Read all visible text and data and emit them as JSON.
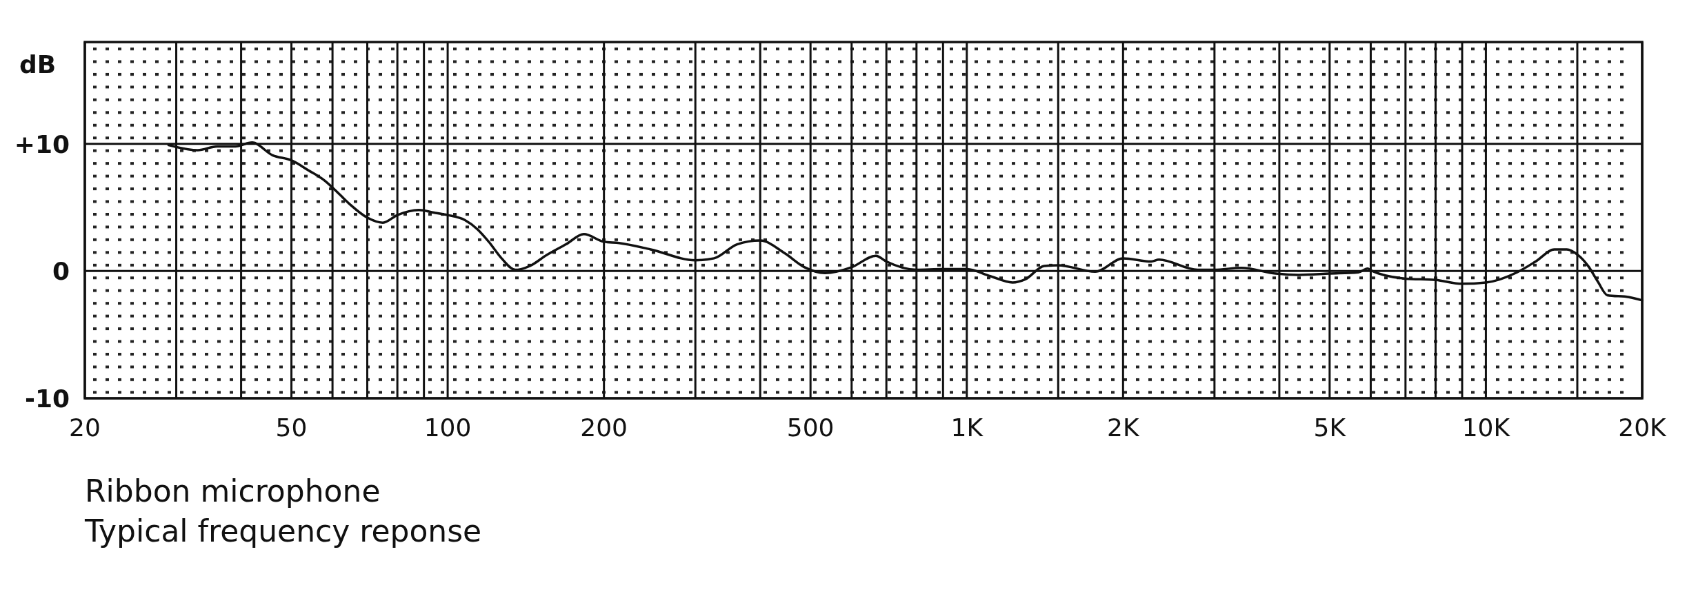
{
  "chart_data": {
    "type": "line",
    "title": "Ribbon microphone",
    "subtitle": "Typical frequency reponse",
    "ylabel": "dB",
    "log": "x",
    "grid": true,
    "marker": "none",
    "line_style": "solid",
    "xlim": [
      20,
      20000
    ],
    "ylim": [
      -10,
      18
    ],
    "xticks": [
      20,
      {
        "value": 30,
        "label": null
      },
      {
        "value": 40,
        "label": null
      },
      50,
      {
        "value": 60,
        "label": null
      },
      {
        "value": 70,
        "label": null
      },
      {
        "value": 80,
        "label": null
      },
      {
        "value": 90,
        "label": null
      },
      100,
      200,
      {
        "value": 300,
        "label": null
      },
      {
        "value": 400,
        "label": null
      },
      500,
      {
        "value": 600,
        "label": null
      },
      {
        "value": 700,
        "label": null
      },
      {
        "value": 800,
        "label": null
      },
      {
        "value": 900,
        "label": null
      },
      {
        "value": 1000,
        "label": "1K"
      },
      {
        "value": 1500,
        "label": null
      },
      {
        "value": 2000,
        "label": "2K"
      },
      {
        "value": 3000,
        "label": null
      },
      {
        "value": 4000,
        "label": null
      },
      {
        "value": 5000,
        "label": "5K"
      },
      {
        "value": 6000,
        "label": null
      },
      {
        "value": 7000,
        "label": null
      },
      {
        "value": 8000,
        "label": null
      },
      {
        "value": 9000,
        "label": null
      },
      {
        "value": 10000,
        "label": "10K"
      },
      {
        "value": 15000,
        "label": null
      },
      {
        "value": 20000,
        "label": "20K"
      }
    ],
    "yticks": [
      -10,
      0,
      {
        "value": 10,
        "label": "+10"
      }
    ],
    "series": [
      {
        "color": "#111111",
        "x": [
          29,
          33,
          36,
          39,
          42,
          46,
          50,
          54,
          58,
          62,
          65,
          70,
          75,
          80,
          88,
          94,
          100,
          108,
          114,
          120,
          127,
          135,
          144,
          155,
          169,
          183,
          200,
          214,
          246,
          300,
          326,
          361,
          400,
          446,
          487,
          533,
          600,
          668,
          700,
          800,
          900,
          1000,
          1110,
          1225,
          1296,
          1410,
          1500,
          1767,
          2000,
          2265,
          2346,
          2784,
          3000,
          3378,
          3939,
          4361,
          5000,
          5677,
          5920,
          6000,
          7000,
          8000,
          9000,
          10000,
          11480,
          12470,
          13550,
          14320,
          15000,
          15770,
          16440,
          17140,
          18870,
          20000
        ],
        "values": [
          9.9,
          9.5,
          9.8,
          9.8,
          10.1,
          9.1,
          8.7,
          7.9,
          7.1,
          6.0,
          5.2,
          4.2,
          3.8,
          4.4,
          4.8,
          4.6,
          4.4,
          4.0,
          3.3,
          2.3,
          1.0,
          0.1,
          0.4,
          1.25,
          2.1,
          2.9,
          2.3,
          2.2,
          1.7,
          0.85,
          1.0,
          2.1,
          2.4,
          1.4,
          0.3,
          -0.15,
          0.3,
          1.2,
          0.75,
          0.1,
          0.15,
          0.15,
          -0.4,
          -0.9,
          -0.65,
          0.4,
          0.45,
          -0.05,
          1.0,
          0.75,
          0.9,
          0.1,
          0.1,
          0.25,
          -0.2,
          -0.3,
          -0.2,
          -0.1,
          0.2,
          0.05,
          -0.6,
          -0.7,
          -1.0,
          -0.9,
          -0.1,
          0.75,
          1.7,
          1.7,
          1.3,
          0.35,
          -0.85,
          -1.9,
          -2.05,
          -2.3
        ]
      }
    ]
  }
}
